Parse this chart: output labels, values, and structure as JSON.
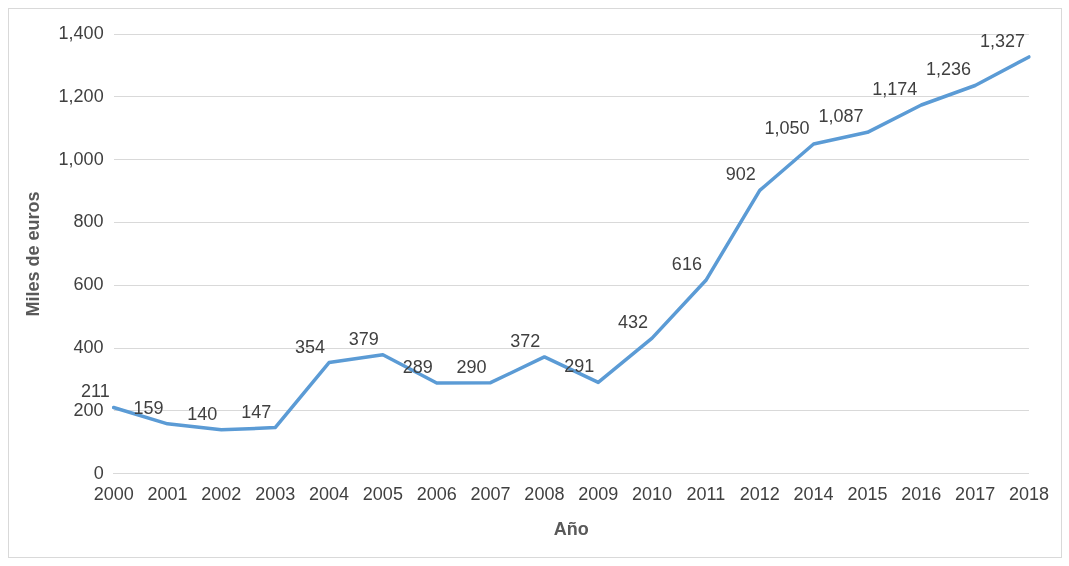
{
  "chart_data": {
    "type": "line",
    "xlabel": "Año",
    "ylabel": "Miles de euros",
    "categories": [
      "2000",
      "2001",
      "2002",
      "2003",
      "2004",
      "2005",
      "2006",
      "2007",
      "2008",
      "2009",
      "2010",
      "2011",
      "2012",
      "2014",
      "2015",
      "2016",
      "2017",
      "2018"
    ],
    "series": [
      {
        "color": "#5b9bd5",
        "values": [
          211,
          159,
          140,
          147,
          354,
          379,
          289,
          290,
          372,
          291,
          432,
          616,
          902,
          1050,
          1087,
          1174,
          1236,
          1327
        ],
        "value_labels": [
          "211",
          "159",
          "140",
          "147",
          "354",
          "379",
          "289",
          "290",
          "372",
          "291",
          "432",
          "616",
          "902",
          "1,050",
          "1,087",
          "1,174",
          "1,236",
          "1,327"
        ]
      }
    ],
    "ylim": [
      0,
      1400
    ],
    "yticks": [
      0,
      {
        "value": 200,
        "label": "200"
      },
      {
        "value": 400,
        "label": "400"
      },
      {
        "value": 600,
        "label": "600"
      },
      {
        "value": 800,
        "label": "800"
      },
      {
        "value": 1000,
        "label": "1,000"
      },
      {
        "value": 1200,
        "label": "1,200"
      },
      {
        "value": 1400,
        "label": "1,400"
      }
    ],
    "grid": "y",
    "legend": false,
    "marker": "none",
    "line_style": "solid"
  }
}
